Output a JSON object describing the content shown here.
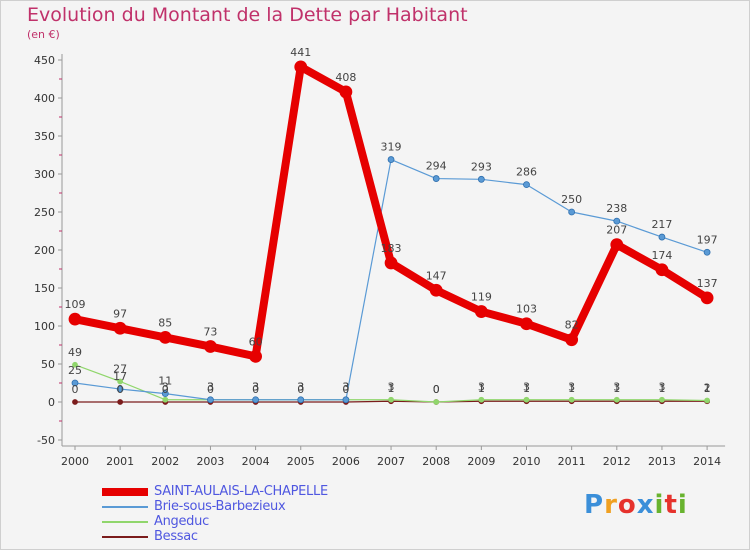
{
  "chart_data": {
    "type": "line",
    "title": "Evolution du Montant de la Dette par Habitant",
    "subtitle": "(en €)",
    "categories": [
      "2000",
      "2001",
      "2002",
      "2003",
      "2004",
      "2005",
      "2006",
      "2007",
      "2008",
      "2009",
      "2010",
      "2011",
      "2012",
      "2013",
      "2014"
    ],
    "ylim": [
      -50,
      450
    ],
    "yticks": [
      -50,
      0,
      50,
      100,
      150,
      200,
      250,
      300,
      350,
      400,
      450
    ],
    "grid": false,
    "legend_position": "bottom-left",
    "series": [
      {
        "name": "SAINT-AULAIS-LA-CHAPELLE",
        "color": "#e60000",
        "values": [
          109,
          97,
          85,
          73,
          60,
          441,
          408,
          183,
          147,
          119,
          103,
          82,
          207,
          174,
          137
        ]
      },
      {
        "name": "Brie-sous-Barbezieux",
        "color": "#5a9ad5",
        "values": [
          25,
          17,
          11,
          3,
          3,
          3,
          3,
          319,
          294,
          293,
          286,
          250,
          238,
          217,
          197
        ]
      },
      {
        "name": "Angeduc",
        "color": "#90d66c",
        "values": [
          49,
          27,
          3,
          3,
          3,
          3,
          3,
          3,
          0,
          3,
          3,
          3,
          3,
          3,
          2
        ]
      },
      {
        "name": "Bessac",
        "color": "#7b1c1c",
        "values": [
          0,
          0,
          0,
          0,
          0,
          0,
          0,
          1,
          0,
          1,
          1,
          1,
          1,
          1,
          1
        ]
      }
    ]
  },
  "logo": {
    "text": "Proxiti",
    "colors": [
      "#3b8fd9",
      "#f0a020",
      "#e6322c",
      "#3b8fd9",
      "#68b32e",
      "#e6322c",
      "#68b32e"
    ]
  }
}
